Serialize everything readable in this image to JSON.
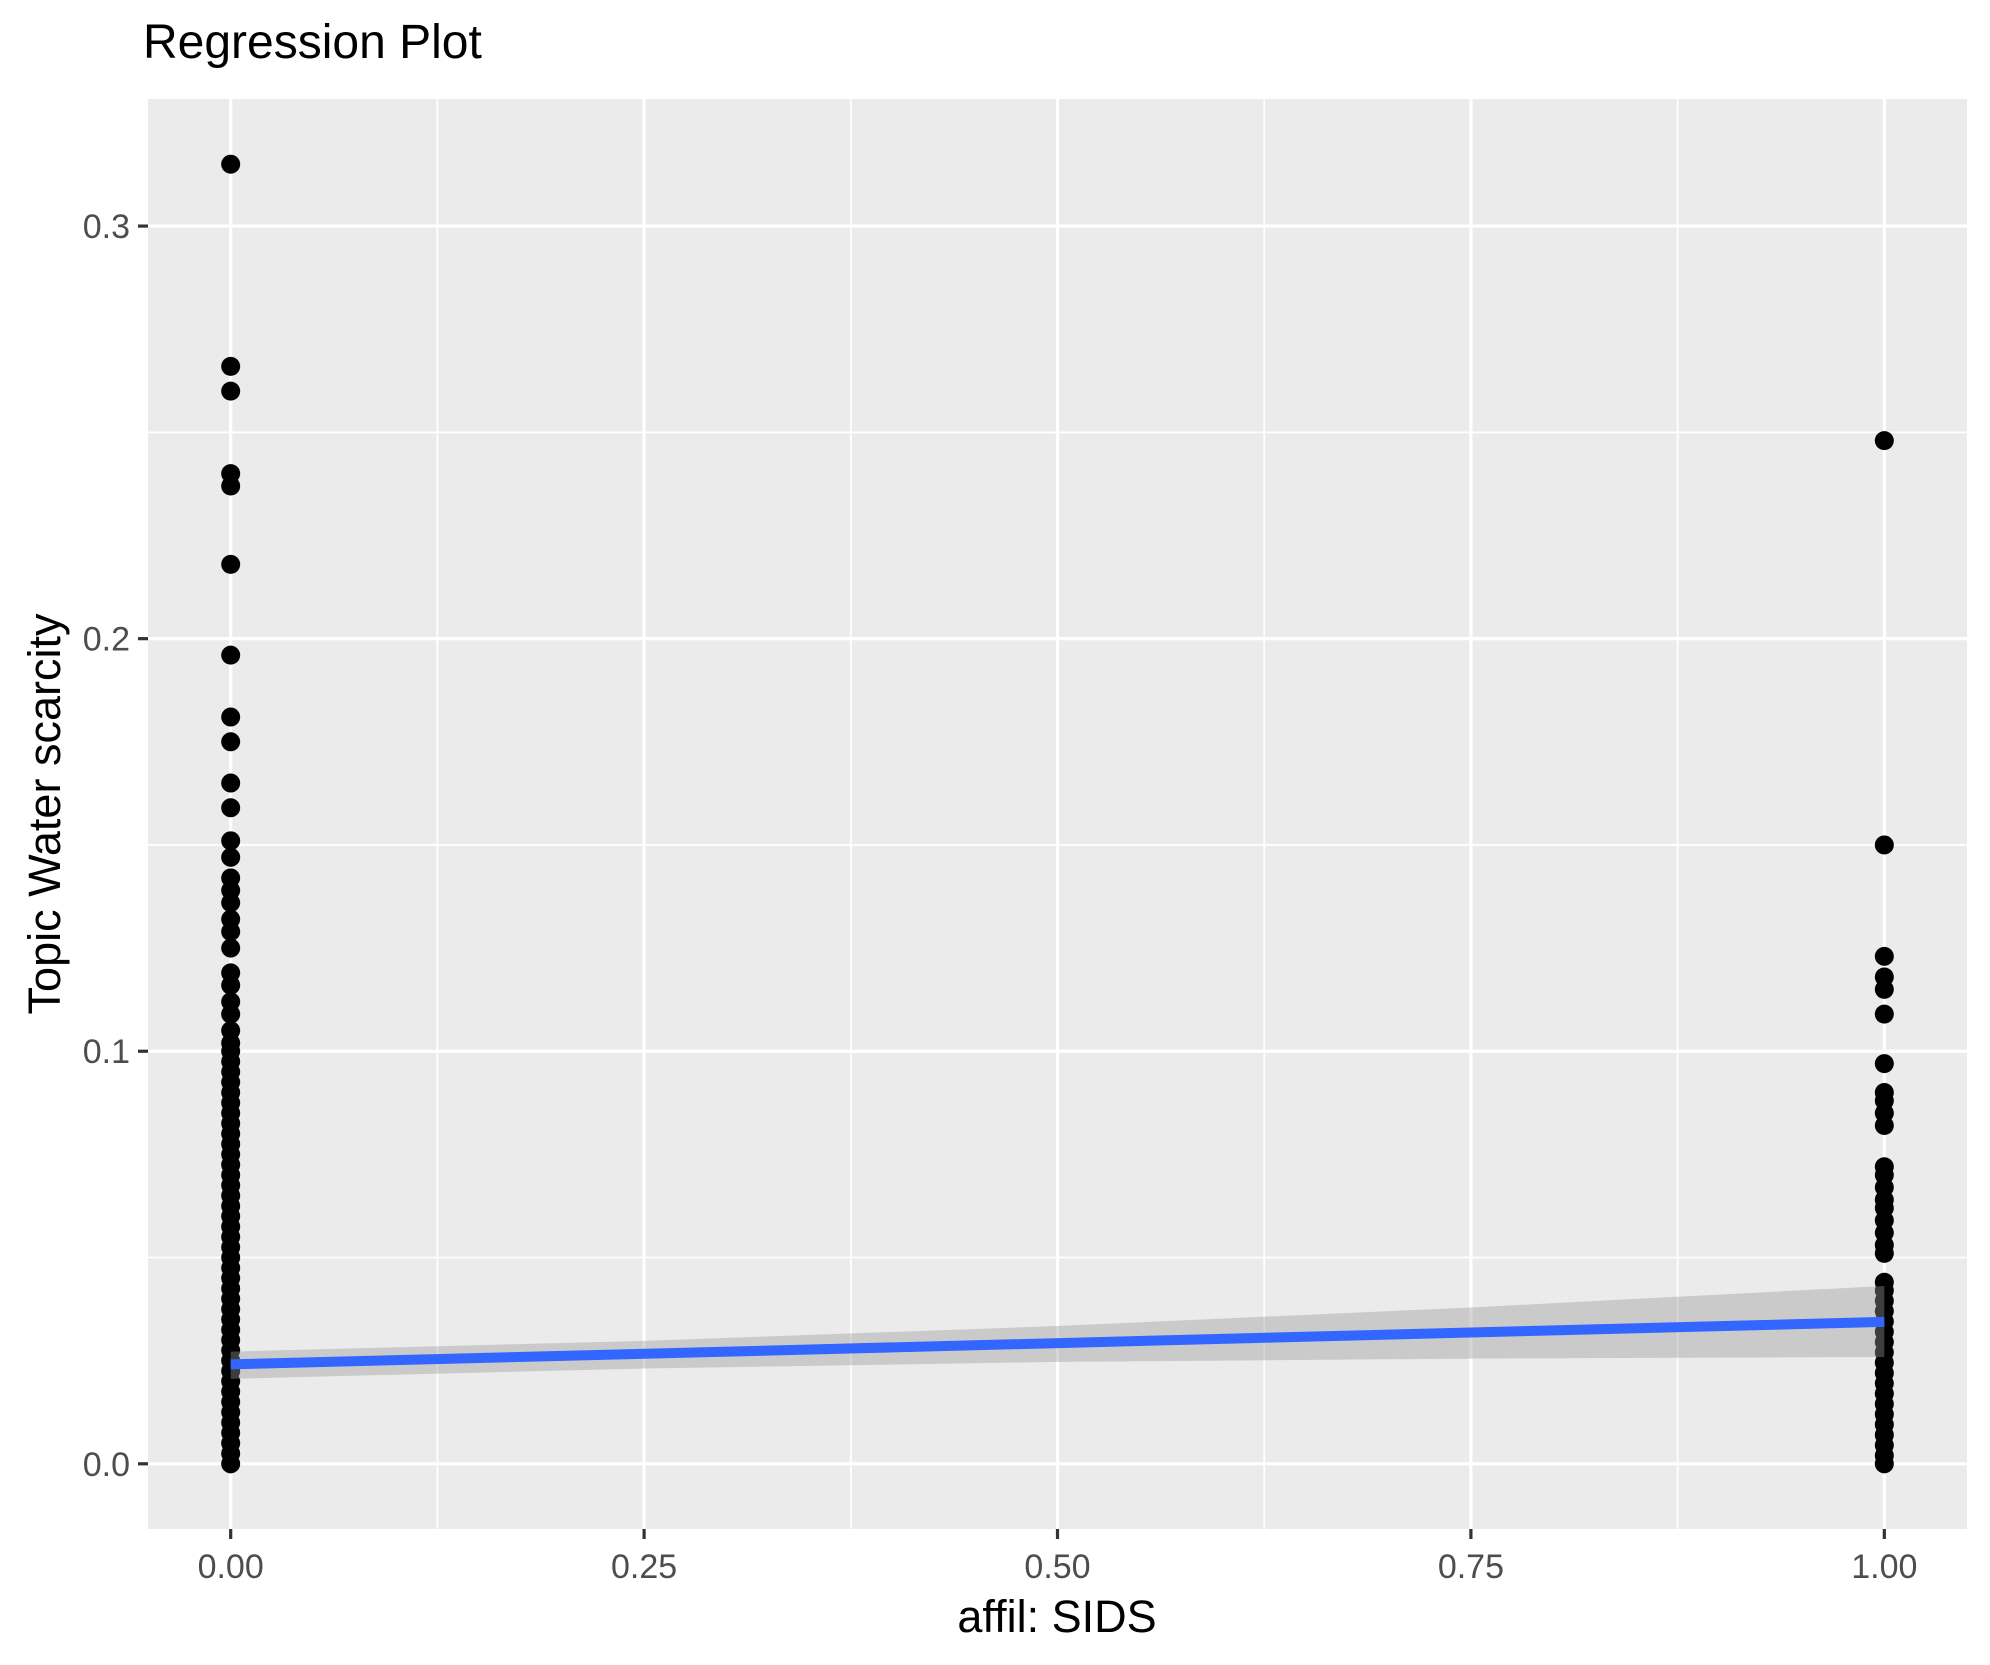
{
  "title": "Regression Plot",
  "chart_data": {
    "type": "scatter",
    "title": "Regression Plot",
    "xlabel": "affil: SIDS",
    "ylabel": "Topic Water scarcity",
    "xlim": [
      -0.05,
      1.05
    ],
    "ylim": [
      -0.0158,
      0.3308
    ],
    "x_major_ticks": [
      0,
      0.25,
      0.5,
      0.75,
      1.0
    ],
    "x_tick_labels": [
      "0.00",
      "0.25",
      "0.50",
      "0.75",
      "1.00"
    ],
    "x_minor_ticks": [
      0.125,
      0.375,
      0.625,
      0.875
    ],
    "y_major_ticks": [
      0,
      0.1,
      0.2,
      0.3
    ],
    "y_tick_labels": [
      "0.0",
      "0.1",
      "0.2",
      "0.3"
    ],
    "y_minor_ticks": [
      0.05,
      0.15,
      0.25
    ],
    "grid": "major+minor-white-on-gray",
    "legend": "none",
    "colors": {
      "panel_background": "#EBEBEB",
      "grid": "#FFFFFF",
      "points": "#000000",
      "regression_line": "#3366FF",
      "confidence_band": "#999999",
      "confidence_band_alpha": 0.4,
      "tick_labels": "#4D4D4D",
      "tick_marks": "#333333",
      "titles": "#000000"
    },
    "series": [
      {
        "name": "affil SIDS = 0",
        "x": 0,
        "y": [
          0.315,
          0.266,
          0.26,
          0.24,
          0.237,
          0.218,
          0.196,
          0.181,
          0.175,
          0.165,
          0.159,
          0.151,
          0.147,
          0.142,
          0.139,
          0.136,
          0.132,
          0.129,
          0.125,
          0.119,
          0.116,
          0.112,
          0.109,
          0.105,
          0.102,
          0.1,
          0.0975,
          0.095,
          0.0925,
          0.09,
          0.0875,
          0.085,
          0.0825,
          0.08,
          0.0775,
          0.075,
          0.0725,
          0.07,
          0.0675,
          0.065,
          0.0625,
          0.06,
          0.0575,
          0.055,
          0.0525,
          0.05,
          0.0475,
          0.045,
          0.0425,
          0.04,
          0.0375,
          0.035,
          0.0325,
          0.03,
          0.0275,
          0.025,
          0.0225,
          0.02,
          0.0175,
          0.015,
          0.0125,
          0.01,
          0.0075,
          0.005,
          0.0025,
          0.0
        ]
      },
      {
        "name": "affil SIDS = 1",
        "x": 1,
        "y": [
          0.248,
          0.15,
          0.123,
          0.118,
          0.115,
          0.109,
          0.097,
          0.09,
          0.088,
          0.085,
          0.082,
          0.072,
          0.07,
          0.067,
          0.064,
          0.062,
          0.059,
          0.056,
          0.053,
          0.051,
          0.044,
          0.042,
          0.0395,
          0.037,
          0.0345,
          0.032,
          0.0295,
          0.027,
          0.0245,
          0.022,
          0.0195,
          0.017,
          0.0145,
          0.012,
          0.0095,
          0.007,
          0.0045,
          0.002,
          0.0
        ]
      }
    ],
    "regression_line": {
      "x": [
        0,
        1
      ],
      "y": [
        0.0241,
        0.0344
      ]
    },
    "confidence_band": {
      "x": [
        0,
        0.25,
        0.5,
        0.75,
        1
      ],
      "upper": [
        0.0272,
        0.0298,
        0.0334,
        0.0379,
        0.0431
      ],
      "lower": [
        0.0206,
        0.0231,
        0.0247,
        0.0255,
        0.0259
      ]
    },
    "point_radius_px": 9.5
  }
}
